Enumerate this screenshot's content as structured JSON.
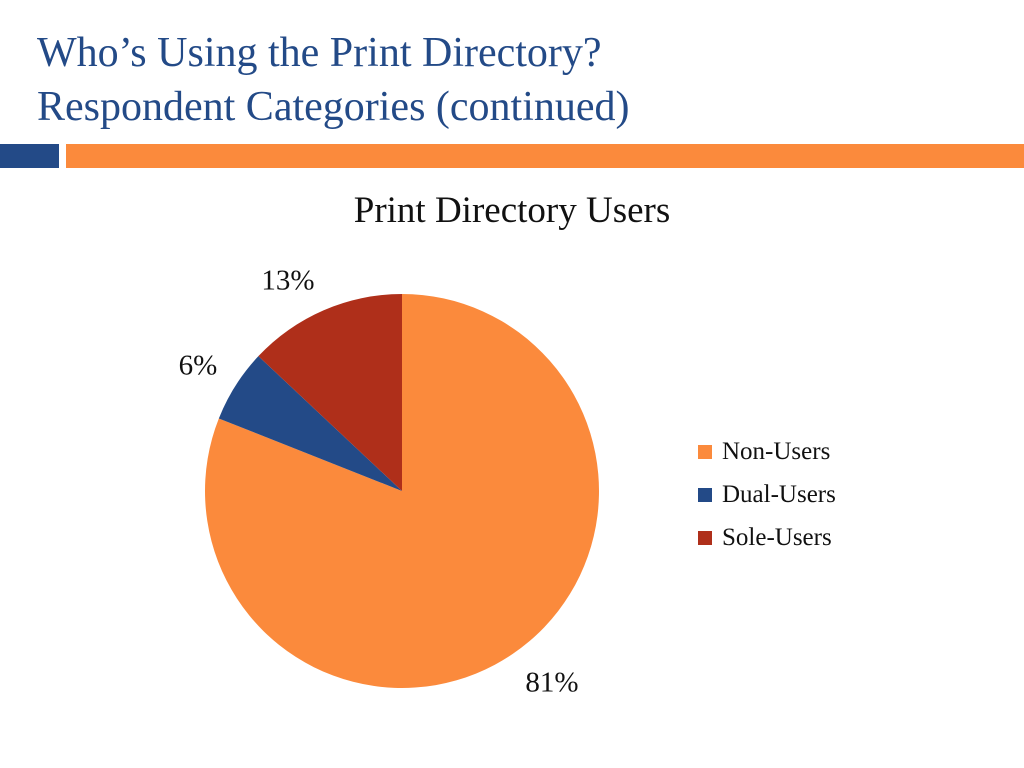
{
  "slide": {
    "title_line1": "Who’s Using the Print Directory?",
    "title_line2": "Respondent Categories (continued)",
    "colors": {
      "title": "#234a87",
      "rule_left": "#234a87",
      "rule_right": "#fb8a3c"
    }
  },
  "chart_data": {
    "type": "pie",
    "title": "Print Directory Users",
    "legend_position": "right",
    "start": "12 o'clock, clockwise",
    "slices": [
      {
        "name": "Non-Users",
        "value": 81,
        "label": "81%",
        "color": "#fb8a3c"
      },
      {
        "name": "Dual-Users",
        "value": 6,
        "label": "6%",
        "color": "#234a87"
      },
      {
        "name": "Sole-Users",
        "value": 13,
        "label": "13%",
        "color": "#af2f1a"
      }
    ]
  }
}
